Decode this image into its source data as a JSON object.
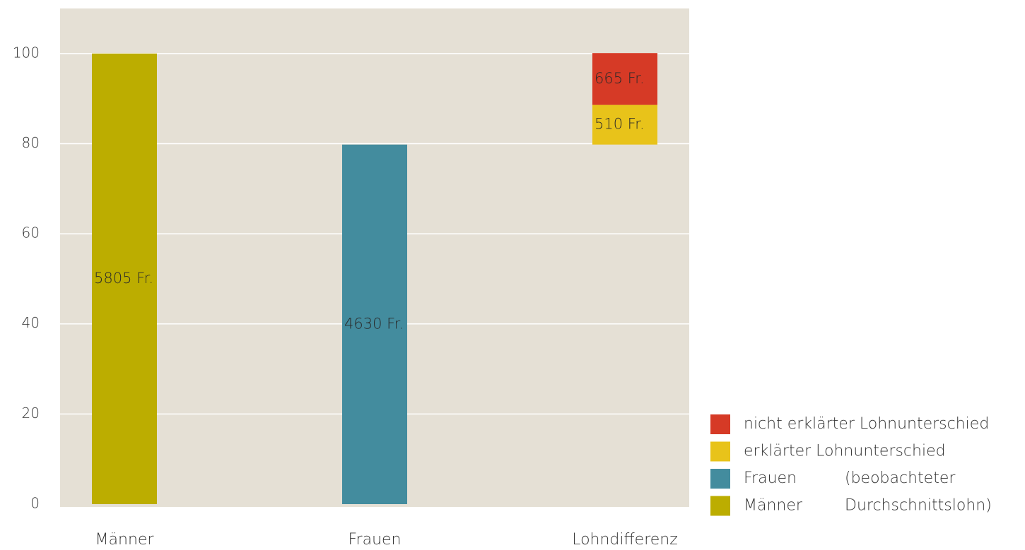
{
  "chart_data": {
    "type": "bar",
    "categories": [
      "Männer",
      "Frauen",
      "Lohndifferenz"
    ],
    "series": [
      {
        "name": "Männer",
        "color": "#bcad00",
        "values": [
          100,
          null,
          null
        ],
        "labels": [
          "5805 Fr.",
          null,
          null
        ]
      },
      {
        "name": "Frauen",
        "color": "#438c9e",
        "values": [
          null,
          79.8,
          null
        ],
        "labels": [
          null,
          "4630 Fr.",
          null
        ]
      },
      {
        "name": "erklärter Lohnunterschied",
        "color": "#e8c31a",
        "values": [
          null,
          null,
          8.8
        ],
        "labels": [
          null,
          null,
          "510 Fr."
        ]
      },
      {
        "name": "nicht erklärter Lohnunterschied",
        "color": "#d63a26",
        "values": [
          null,
          null,
          11.5
        ],
        "labels": [
          null,
          null,
          "665 Fr."
        ]
      }
    ],
    "legend_note": [
      "(beobachteter",
      "Durchschnittslohn)"
    ],
    "ylim": [
      0,
      110
    ],
    "yticks": [
      0,
      20,
      40,
      60,
      80,
      100
    ],
    "grid": true,
    "background": "#e5e0d5"
  }
}
